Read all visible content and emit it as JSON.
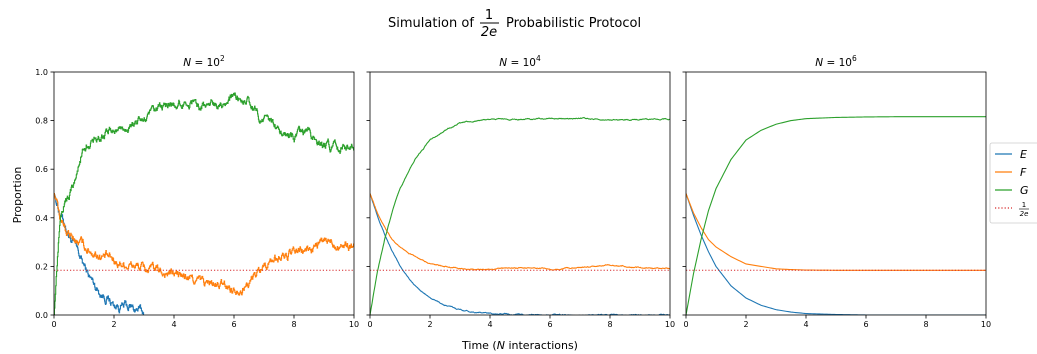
{
  "figure": {
    "suptitle_prefix": "Simulation of",
    "suptitle_frac_num": "1",
    "suptitle_frac_den": "2e",
    "suptitle_suffix": "Probabilistic Protocol",
    "xlabel_pre": "Time (",
    "xlabel_var": "N",
    "xlabel_post": " interactions)",
    "ylabel": "Proportion"
  },
  "chart_data": [
    {
      "type": "line",
      "title_var": "N",
      "title_eq": " = 10",
      "title_exp": "2",
      "xlim": [
        0,
        10
      ],
      "ylim": [
        0,
        1.0
      ],
      "xticks": [
        "0",
        "2",
        "4",
        "6",
        "8",
        "10"
      ],
      "yticks": [
        "0.0",
        "0.2",
        "0.4",
        "0.6",
        "0.8",
        "1.0"
      ],
      "show_yticklabels": true,
      "noise": 0.025,
      "series": [
        {
          "name": "E",
          "x": [
            0,
            0.2,
            0.5,
            0.8,
            1.0,
            1.2,
            1.5,
            1.8,
            2.0,
            2.3,
            2.5,
            2.8,
            3.0
          ],
          "y": [
            0.5,
            0.42,
            0.33,
            0.25,
            0.2,
            0.15,
            0.1,
            0.07,
            0.04,
            0.035,
            0.03,
            0.02,
            0.005
          ]
        },
        {
          "name": "F",
          "x": [
            0,
            0.2,
            0.5,
            0.8,
            1.0,
            1.5,
            2.0,
            2.5,
            3.0,
            3.5,
            4.0,
            4.5,
            5.0,
            5.5,
            6.0,
            6.5,
            7.0,
            7.5,
            8.0,
            8.5,
            9.0,
            9.5,
            10.0
          ],
          "y": [
            0.5,
            0.4,
            0.32,
            0.3,
            0.28,
            0.25,
            0.22,
            0.21,
            0.19,
            0.18,
            0.17,
            0.15,
            0.13,
            0.12,
            0.11,
            0.13,
            0.21,
            0.24,
            0.25,
            0.27,
            0.3,
            0.3,
            0.28
          ]
        },
        {
          "name": "G",
          "x": [
            0,
            0.1,
            0.2,
            0.3,
            0.5,
            0.8,
            1.0,
            1.5,
            2.0,
            2.5,
            3.0,
            3.5,
            4.0,
            4.5,
            5.0,
            5.5,
            6.0,
            6.5,
            7.0,
            7.5,
            8.0,
            8.5,
            9.0,
            9.5,
            10.0
          ],
          "y": [
            0.0,
            0.2,
            0.4,
            0.45,
            0.5,
            0.6,
            0.7,
            0.74,
            0.76,
            0.78,
            0.8,
            0.84,
            0.87,
            0.88,
            0.86,
            0.88,
            0.89,
            0.87,
            0.8,
            0.76,
            0.72,
            0.75,
            0.7,
            0.68,
            0.72
          ]
        }
      ]
    },
    {
      "type": "line",
      "title_var": "N",
      "title_eq": " = 10",
      "title_exp": "4",
      "xlim": [
        0,
        10
      ],
      "ylim": [
        0,
        1.0
      ],
      "xticks": [
        "0",
        "2",
        "4",
        "6",
        "8",
        "10"
      ],
      "yticks": [
        "0.0",
        "0.2",
        "0.4",
        "0.6",
        "0.8",
        "1.0"
      ],
      "show_yticklabels": false,
      "noise": 0.003,
      "series": [
        {
          "name": "E",
          "x": [
            0,
            0.25,
            0.5,
            0.75,
            1.0,
            1.25,
            1.5,
            2.0,
            2.5,
            3.0,
            3.5,
            4.0,
            5.0,
            6.0,
            7.0,
            8.0,
            9.0,
            10.0
          ],
          "y": [
            0.5,
            0.41,
            0.33,
            0.26,
            0.2,
            0.16,
            0.12,
            0.07,
            0.04,
            0.022,
            0.012,
            0.006,
            0.002,
            0.0,
            0.0,
            0.0,
            0.0,
            0.0
          ]
        },
        {
          "name": "F",
          "x": [
            0,
            0.25,
            0.5,
            0.75,
            1.0,
            1.5,
            2.0,
            2.5,
            3.0,
            3.5,
            4.0,
            5.0,
            6.0,
            7.0,
            8.0,
            9.0,
            10.0
          ],
          "y": [
            0.5,
            0.42,
            0.36,
            0.31,
            0.28,
            0.24,
            0.21,
            0.2,
            0.19,
            0.185,
            0.19,
            0.195,
            0.19,
            0.195,
            0.205,
            0.195,
            0.19
          ]
        },
        {
          "name": "G",
          "x": [
            0,
            0.25,
            0.5,
            0.75,
            1.0,
            1.5,
            2.0,
            2.5,
            3.0,
            3.5,
            4.0,
            5.0,
            6.0,
            7.0,
            8.0,
            9.0,
            10.0
          ],
          "y": [
            0.0,
            0.18,
            0.32,
            0.43,
            0.52,
            0.64,
            0.72,
            0.76,
            0.79,
            0.8,
            0.805,
            0.805,
            0.81,
            0.81,
            0.8,
            0.805,
            0.805
          ]
        }
      ]
    },
    {
      "type": "line",
      "title_var": "N",
      "title_eq": " = 10",
      "title_exp": "6",
      "xlim": [
        0,
        10
      ],
      "ylim": [
        0,
        1.0
      ],
      "xticks": [
        "0",
        "2",
        "4",
        "6",
        "8",
        "10"
      ],
      "yticks": [
        "0.0",
        "0.2",
        "0.4",
        "0.6",
        "0.8",
        "1.0"
      ],
      "show_yticklabels": false,
      "noise": 0,
      "series": [
        {
          "name": "E",
          "x": [
            0,
            0.25,
            0.5,
            0.75,
            1.0,
            1.25,
            1.5,
            2.0,
            2.5,
            3.0,
            3.5,
            4.0,
            5.0,
            6.0,
            7.0,
            8.0,
            9.0,
            10.0
          ],
          "y": [
            0.5,
            0.41,
            0.33,
            0.26,
            0.2,
            0.16,
            0.12,
            0.07,
            0.04,
            0.022,
            0.012,
            0.006,
            0.002,
            0.0,
            0.0,
            0.0,
            0.0,
            0.0
          ]
        },
        {
          "name": "F",
          "x": [
            0,
            0.25,
            0.5,
            0.75,
            1.0,
            1.5,
            2.0,
            2.5,
            3.0,
            3.5,
            4.0,
            5.0,
            6.0,
            7.0,
            8.0,
            9.0,
            10.0
          ],
          "y": [
            0.5,
            0.42,
            0.36,
            0.31,
            0.28,
            0.24,
            0.21,
            0.2,
            0.19,
            0.187,
            0.185,
            0.184,
            0.184,
            0.184,
            0.184,
            0.184,
            0.184
          ]
        },
        {
          "name": "G",
          "x": [
            0,
            0.25,
            0.5,
            0.75,
            1.0,
            1.5,
            2.0,
            2.5,
            3.0,
            3.5,
            4.0,
            5.0,
            6.0,
            7.0,
            8.0,
            9.0,
            10.0
          ],
          "y": [
            0.0,
            0.17,
            0.31,
            0.43,
            0.52,
            0.64,
            0.72,
            0.76,
            0.785,
            0.8,
            0.808,
            0.813,
            0.815,
            0.816,
            0.816,
            0.816,
            0.816
          ]
        }
      ]
    }
  ],
  "reference_line": {
    "name": "1/2e",
    "y": 0.1839,
    "color": "#d62728",
    "style": "dotted"
  },
  "legend": {
    "placement": "right",
    "entries": [
      {
        "label": "E",
        "color": "#1f77b4"
      },
      {
        "label": "F",
        "color": "#ff7f0e"
      },
      {
        "label": "G",
        "color": "#2ca02c"
      },
      {
        "label_num": "1",
        "label_den": "2e",
        "color": "#d62728",
        "dotted": true
      }
    ]
  },
  "colors": {
    "E": "#1f77b4",
    "F": "#ff7f0e",
    "G": "#2ca02c",
    "ref": "#d62728"
  }
}
